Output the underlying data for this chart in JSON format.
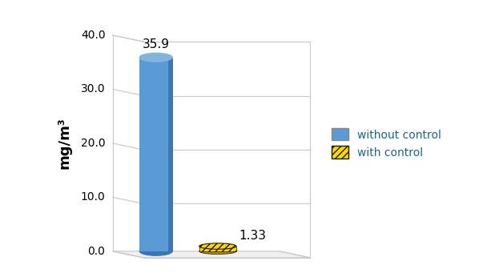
{
  "values": [
    35.9,
    1.33
  ],
  "labels": [
    "without control",
    "with control"
  ],
  "bar_color": "#5B9BD5",
  "bar_color_dark": "#3A78B5",
  "bar_color_top": "#82B4DC",
  "disk_color": "#FFD700",
  "disk_color_dark": "#B8860B",
  "disk_hatch": "////",
  "ylabel": "mg/m³",
  "ylim": [
    0,
    42
  ],
  "yticks": [
    0.0,
    10.0,
    20.0,
    30.0,
    40.0
  ],
  "annotations": [
    "35.9",
    "1.33"
  ],
  "legend_labels": [
    "without control",
    "with control"
  ],
  "legend_text_color": "#1F6391",
  "background_color": "#ffffff",
  "grid_line_color": "#C8C8C8",
  "wall_color": "#E8E8E8",
  "floor_color": "#ECECEC"
}
